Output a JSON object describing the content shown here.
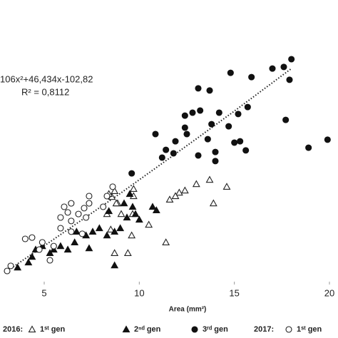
{
  "chart_data": {
    "type": "scatter",
    "x_label": "Area (mm²)",
    "xlim": [
      2.675,
      20.45
    ],
    "xticks": [
      5,
      10,
      15,
      20
    ],
    "ylim": [
      0,
      1000
    ],
    "equation": "106x²+46,434x-102,82",
    "r_squared": "R² = 0,8112",
    "legend_groups": [
      "2016:",
      "2017:"
    ],
    "trendline": {
      "x": [
        3,
        5,
        7,
        9,
        11,
        13,
        15,
        17,
        18
      ],
      "y": [
        38,
        134,
        232,
        330,
        432,
        534,
        638,
        744,
        797
      ]
    },
    "series": [
      {
        "name": "1ˢᵗ gen",
        "group": 0,
        "marker": "triangle-open",
        "color": "#222",
        "x": [
          13.7,
          14.6,
          13.0,
          12.4,
          12.1,
          11.9,
          13.9,
          11.6,
          9.7,
          9.7,
          8.7,
          8.56,
          8.86,
          8.3,
          9.05,
          9.65,
          8.5,
          9.6,
          10.5,
          11.4,
          8.7,
          9.4,
          8.79,
          8.4
        ],
        "y": [
          381,
          355,
          365,
          341,
          333,
          320,
          293,
          307,
          347,
          320,
          339,
          317,
          293,
          253,
          253,
          253,
          195,
          173,
          213,
          147,
          107,
          107,
          293,
          328
        ]
      },
      {
        "name": "2ⁿᵈ gen",
        "group": 0,
        "marker": "triangle-filled",
        "color": "#111",
        "x": [
          9.5,
          9.2,
          9.65,
          9.8,
          10.0,
          10.7,
          10.9,
          9.35,
          9.0,
          8.7,
          8.3,
          8.4,
          7.9,
          7.55,
          7.36,
          7.2,
          6.6,
          6.24,
          5.86,
          5.5,
          5.3,
          4.9,
          4.55,
          4.36,
          4.17,
          3.6,
          8.7,
          6.7
        ],
        "y": [
          328,
          293,
          280,
          253,
          232,
          280,
          267,
          240,
          200,
          187,
          173,
          264,
          200,
          187,
          125,
          173,
          147,
          120,
          133,
          120,
          107,
          133,
          120,
          93,
          72,
          53,
          61,
          187
        ]
      },
      {
        "name": "3ʳᵈ gen",
        "group": 0,
        "marker": "circle-filled",
        "color": "#111",
        "x": [
          17.0,
          17.6,
          18.0,
          17.9,
          14.8,
          15.9,
          13.1,
          13.7,
          12.8,
          13.2,
          14.2,
          15.2,
          15.7,
          14.7,
          13.8,
          12.4,
          12.4,
          10.85,
          11.4,
          11.9,
          11.8,
          12.5,
          13.6,
          14.0,
          15.0,
          15.3,
          14.0,
          13.1,
          15.6,
          17.7,
          18.9,
          19.9,
          11.2,
          9.6
        ],
        "y": [
          797,
          803,
          832,
          755,
          781,
          765,
          723,
          715,
          632,
          640,
          632,
          627,
          653,
          581,
          589,
          576,
          621,
          552,
          493,
          525,
          480,
          552,
          533,
          485,
          520,
          525,
          451,
          472,
          491,
          605,
          501,
          531,
          464,
          405
        ]
      },
      {
        "name": "1ˢᵗ gen",
        "group": 1,
        "marker": "circle-open",
        "color": "#222",
        "x": [
          3.05,
          3.24,
          4.0,
          4.36,
          4.9,
          5.5,
          5.86,
          5.86,
          6.24,
          6.42,
          6.8,
          7.1,
          7.36,
          6.42,
          6.05,
          7.36,
          8.3,
          8.6,
          6.42,
          7.0,
          5.3,
          4.74,
          8.1,
          7.2
        ],
        "y": [
          40,
          59,
          160,
          165,
          147,
          133,
          200,
          240,
          259,
          227,
          253,
          275,
          293,
          293,
          280,
          320,
          320,
          355,
          187,
          179,
          80,
          120,
          280,
          240
        ]
      }
    ]
  }
}
